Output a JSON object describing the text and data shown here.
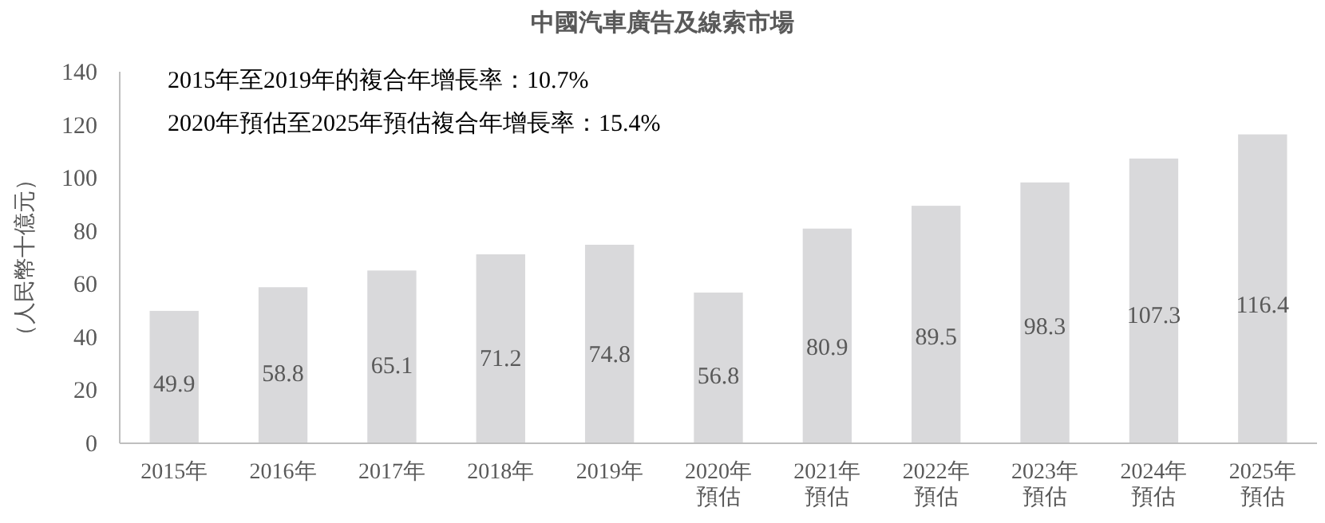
{
  "chart_data": {
    "type": "bar",
    "title": "中國汽車廣告及線索市場",
    "ylabel": "（人民幣十億元）",
    "annotations": [
      "2015年至2019年的複合年增長率：10.7%",
      "2020年預估至2025年預估複合年增長率：15.4%"
    ],
    "categories": [
      "2015年",
      "2016年",
      "2017年",
      "2018年",
      "2019年",
      "2020年預估",
      "2021年預估",
      "2022年預估",
      "2023年預估",
      "2024年預估",
      "2025年預估"
    ],
    "values": [
      49.9,
      58.8,
      65.1,
      71.2,
      74.8,
      56.8,
      80.9,
      89.5,
      98.3,
      107.3,
      116.4
    ],
    "color": "#d9d9db",
    "ylim": [
      0,
      140
    ],
    "yticks": [
      0,
      20,
      40,
      60,
      80,
      100,
      120,
      140
    ],
    "data_labels": true
  }
}
